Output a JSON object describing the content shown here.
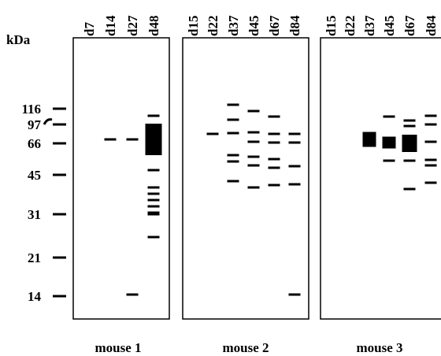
{
  "axis_label": "kDa",
  "markers": [
    "116",
    "97",
    "66",
    "45",
    "31",
    "21",
    "14"
  ],
  "panels": [
    {
      "lanes": [
        "d7",
        "d14",
        "d27",
        "d48"
      ],
      "caption": "mouse 1"
    },
    {
      "lanes": [
        "d15",
        "d22",
        "d37",
        "d45",
        "d67",
        "d84"
      ],
      "caption": "mouse 2"
    },
    {
      "lanes": [
        "d15",
        "d22",
        "d37",
        "d45",
        "d67",
        "d84"
      ],
      "caption": "mouse 3"
    }
  ]
}
